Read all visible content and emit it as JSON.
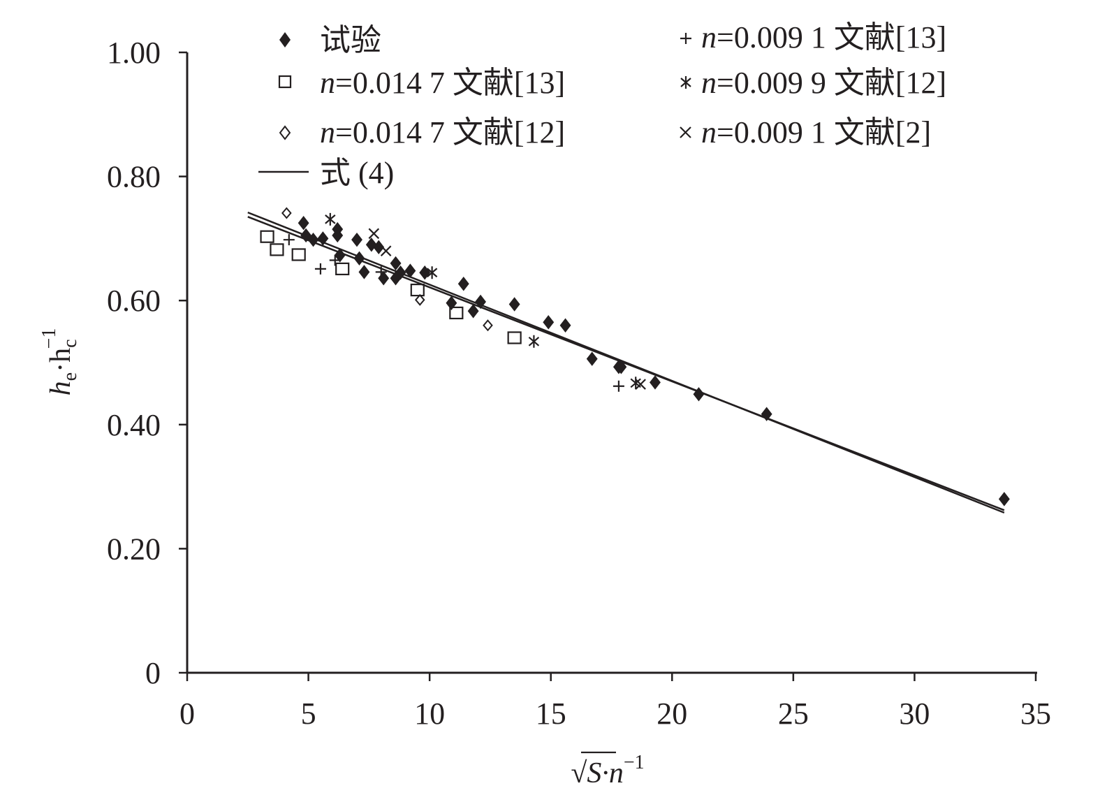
{
  "chart_data": {
    "type": "scatter",
    "xlabel": "√S·n⁻¹",
    "ylabel": "he·hc⁻¹",
    "xlim": [
      0,
      35
    ],
    "ylim": [
      0,
      1.0
    ],
    "x_ticks": [
      {
        "value": 0,
        "label": "0"
      },
      {
        "value": 5,
        "label": "5"
      },
      {
        "value": 10,
        "label": "10"
      },
      {
        "value": 15,
        "label": "15"
      },
      {
        "value": 20,
        "label": "20"
      },
      {
        "value": 25,
        "label": "25"
      },
      {
        "value": 30,
        "label": "30"
      },
      {
        "value": 35,
        "label": "35"
      }
    ],
    "y_ticks": [
      {
        "value": 0,
        "label": "0"
      },
      {
        "value": 0.2,
        "label": "0.20"
      },
      {
        "value": 0.4,
        "label": "0.40"
      },
      {
        "value": 0.6,
        "label": "0.60"
      },
      {
        "value": 0.8,
        "label": "0.80"
      },
      {
        "value": 1.0,
        "label": "1.00"
      }
    ],
    "grid": false,
    "legend_position": "top",
    "series": [
      {
        "name": "试验",
        "marker": "filled-diamond",
        "points": [
          [
            4.8,
            0.725
          ],
          [
            4.9,
            0.705
          ],
          [
            5.2,
            0.698
          ],
          [
            5.6,
            0.7
          ],
          [
            6.2,
            0.715
          ],
          [
            6.2,
            0.705
          ],
          [
            6.3,
            0.673
          ],
          [
            7.0,
            0.698
          ],
          [
            7.1,
            0.668
          ],
          [
            7.3,
            0.646
          ],
          [
            7.6,
            0.69
          ],
          [
            7.9,
            0.686
          ],
          [
            8.1,
            0.636
          ],
          [
            8.6,
            0.66
          ],
          [
            8.6,
            0.636
          ],
          [
            8.8,
            0.645
          ],
          [
            9.2,
            0.648
          ],
          [
            9.8,
            0.645
          ],
          [
            10.9,
            0.596
          ],
          [
            11.4,
            0.627
          ],
          [
            11.8,
            0.583
          ],
          [
            12.1,
            0.598
          ],
          [
            13.5,
            0.594
          ],
          [
            14.9,
            0.565
          ],
          [
            15.6,
            0.56
          ],
          [
            16.7,
            0.506
          ],
          [
            17.8,
            0.493
          ],
          [
            17.9,
            0.493
          ],
          [
            19.3,
            0.468
          ],
          [
            21.1,
            0.449
          ],
          [
            23.9,
            0.417
          ],
          [
            33.7,
            0.28
          ]
        ]
      },
      {
        "name": "n=0.014 7 文献[13]",
        "marker": "open-square",
        "points": [
          [
            3.3,
            0.703
          ],
          [
            3.7,
            0.682
          ],
          [
            4.6,
            0.674
          ],
          [
            6.4,
            0.651
          ],
          [
            9.5,
            0.617
          ],
          [
            11.1,
            0.58
          ],
          [
            13.5,
            0.54
          ]
        ]
      },
      {
        "name": "n=0.014 7 文献[12]",
        "marker": "open-diamond",
        "points": [
          [
            4.1,
            0.741
          ],
          [
            9.6,
            0.601
          ],
          [
            12.4,
            0.56
          ]
        ]
      },
      {
        "name": "n=0.009 1 文献[13]",
        "marker": "plus",
        "points": [
          [
            4.2,
            0.698
          ],
          [
            5.5,
            0.651
          ],
          [
            6.1,
            0.665
          ],
          [
            8.0,
            0.646
          ],
          [
            17.8,
            0.462
          ]
        ]
      },
      {
        "name": "n=0.009 9 文献[12]",
        "marker": "asterisk",
        "points": [
          [
            5.9,
            0.731
          ],
          [
            10.1,
            0.645
          ],
          [
            14.3,
            0.534
          ],
          [
            18.5,
            0.467
          ]
        ]
      },
      {
        "name": "n=0.009 1 文献[2]",
        "marker": "cross",
        "points": [
          [
            7.7,
            0.708
          ],
          [
            8.2,
            0.68
          ],
          [
            18.7,
            0.465
          ]
        ]
      }
    ],
    "lines": [
      {
        "name": "式 (4)",
        "points": [
          [
            2.5,
            0.742
          ],
          [
            33.7,
            0.258
          ]
        ]
      },
      {
        "points": [
          [
            2.5,
            0.735
          ],
          [
            33.7,
            0.262
          ]
        ]
      }
    ],
    "legend_labels": {
      "s1": "试验",
      "s2_n": "n",
      "s2_rest": "=0.014 7 文献[13]",
      "s3_n": "n",
      "s3_rest": "=0.014 7 文献[12]",
      "s4_n": "n",
      "s4_rest": "=0.009 1 文献[13]",
      "s5_n": "n",
      "s5_rest": "=0.009 9 文献[12]",
      "s6_n": "n",
      "s6_rest": "=0.009 1 文献[2]",
      "line": "式 (4)"
    },
    "axis_title_parts": {
      "x_sqrt": "√",
      "x_S": "S",
      "x_dot_n": "·n",
      "x_sup": "−1",
      "y_h1": "h",
      "y_sub1": "e",
      "y_dot_h": "·h",
      "y_sub2": "c",
      "y_sup": "−1"
    }
  }
}
